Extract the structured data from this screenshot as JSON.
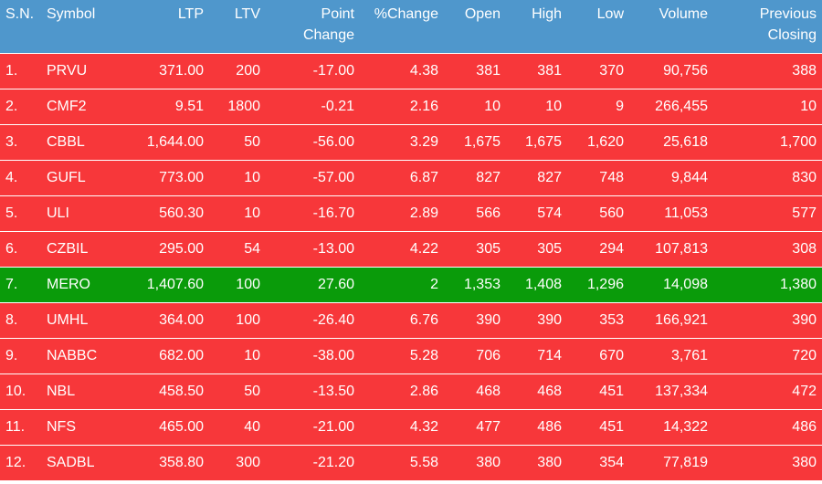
{
  "table": {
    "headers": [
      {
        "key": "sn",
        "lines": [
          "S.N."
        ],
        "align": "l"
      },
      {
        "key": "symbol",
        "lines": [
          "Symbol"
        ],
        "align": "l"
      },
      {
        "key": "ltp",
        "lines": [
          "LTP"
        ],
        "align": "r"
      },
      {
        "key": "ltv",
        "lines": [
          "LTV"
        ],
        "align": "r"
      },
      {
        "key": "point_change",
        "lines": [
          "Point",
          "Change"
        ],
        "align": "r"
      },
      {
        "key": "pct_change",
        "lines": [
          "%Change"
        ],
        "align": "r"
      },
      {
        "key": "open",
        "lines": [
          "Open"
        ],
        "align": "r"
      },
      {
        "key": "high",
        "lines": [
          "High"
        ],
        "align": "r"
      },
      {
        "key": "low",
        "lines": [
          "Low"
        ],
        "align": "r"
      },
      {
        "key": "volume",
        "lines": [
          "Volume"
        ],
        "align": "r"
      },
      {
        "key": "prev_close",
        "lines": [
          "Previous",
          "Closing"
        ],
        "align": "r"
      }
    ],
    "colors": {
      "header_bg": "#4f97cc",
      "down_row_bg": "#f7373a",
      "up_row_bg": "#0a9b0a",
      "text": "#ffffff"
    },
    "rows": [
      {
        "sn": "1.",
        "symbol": "PRVU",
        "ltp": "371.00",
        "ltv": "200",
        "point_change": "-17.00",
        "pct_change": "4.38",
        "open": "381",
        "high": "381",
        "low": "370",
        "volume": "90,756",
        "prev_close": "388",
        "trend": "down"
      },
      {
        "sn": "2.",
        "symbol": "CMF2",
        "ltp": "9.51",
        "ltv": "1800",
        "point_change": "-0.21",
        "pct_change": "2.16",
        "open": "10",
        "high": "10",
        "low": "9",
        "volume": "266,455",
        "prev_close": "10",
        "trend": "down"
      },
      {
        "sn": "3.",
        "symbol": "CBBL",
        "ltp": "1,644.00",
        "ltv": "50",
        "point_change": "-56.00",
        "pct_change": "3.29",
        "open": "1,675",
        "high": "1,675",
        "low": "1,620",
        "volume": "25,618",
        "prev_close": "1,700",
        "trend": "down"
      },
      {
        "sn": "4.",
        "symbol": "GUFL",
        "ltp": "773.00",
        "ltv": "10",
        "point_change": "-57.00",
        "pct_change": "6.87",
        "open": "827",
        "high": "827",
        "low": "748",
        "volume": "9,844",
        "prev_close": "830",
        "trend": "down"
      },
      {
        "sn": "5.",
        "symbol": "ULI",
        "ltp": "560.30",
        "ltv": "10",
        "point_change": "-16.70",
        "pct_change": "2.89",
        "open": "566",
        "high": "574",
        "low": "560",
        "volume": "11,053",
        "prev_close": "577",
        "trend": "down"
      },
      {
        "sn": "6.",
        "symbol": "CZBIL",
        "ltp": "295.00",
        "ltv": "54",
        "point_change": "-13.00",
        "pct_change": "4.22",
        "open": "305",
        "high": "305",
        "low": "294",
        "volume": "107,813",
        "prev_close": "308",
        "trend": "down"
      },
      {
        "sn": "7.",
        "symbol": "MERO",
        "ltp": "1,407.60",
        "ltv": "100",
        "point_change": "27.60",
        "pct_change": "2",
        "open": "1,353",
        "high": "1,408",
        "low": "1,296",
        "volume": "14,098",
        "prev_close": "1,380",
        "trend": "up"
      },
      {
        "sn": "8.",
        "symbol": "UMHL",
        "ltp": "364.00",
        "ltv": "100",
        "point_change": "-26.40",
        "pct_change": "6.76",
        "open": "390",
        "high": "390",
        "low": "353",
        "volume": "166,921",
        "prev_close": "390",
        "trend": "down"
      },
      {
        "sn": "9.",
        "symbol": "NABBC",
        "ltp": "682.00",
        "ltv": "10",
        "point_change": "-38.00",
        "pct_change": "5.28",
        "open": "706",
        "high": "714",
        "low": "670",
        "volume": "3,761",
        "prev_close": "720",
        "trend": "down"
      },
      {
        "sn": "10.",
        "symbol": "NBL",
        "ltp": "458.50",
        "ltv": "50",
        "point_change": "-13.50",
        "pct_change": "2.86",
        "open": "468",
        "high": "468",
        "low": "451",
        "volume": "137,334",
        "prev_close": "472",
        "trend": "down"
      },
      {
        "sn": "11.",
        "symbol": "NFS",
        "ltp": "465.00",
        "ltv": "40",
        "point_change": "-21.00",
        "pct_change": "4.32",
        "open": "477",
        "high": "486",
        "low": "451",
        "volume": "14,322",
        "prev_close": "486",
        "trend": "down"
      },
      {
        "sn": "12.",
        "symbol": "SADBL",
        "ltp": "358.80",
        "ltv": "300",
        "point_change": "-21.20",
        "pct_change": "5.58",
        "open": "380",
        "high": "380",
        "low": "354",
        "volume": "77,819",
        "prev_close": "380",
        "trend": "down"
      }
    ]
  }
}
